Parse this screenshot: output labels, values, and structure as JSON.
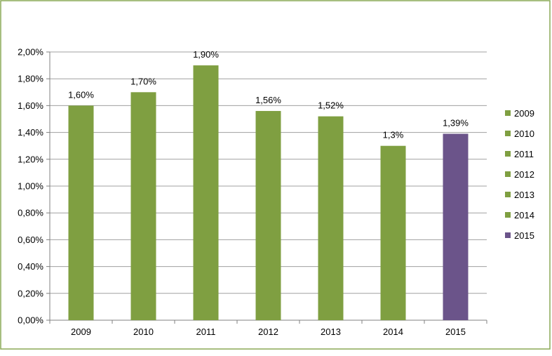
{
  "chart_data": {
    "type": "bar",
    "categories": [
      "2009",
      "2010",
      "2011",
      "2012",
      "2013",
      "2014",
      "2015"
    ],
    "values": [
      1.6,
      1.7,
      1.9,
      1.56,
      1.52,
      1.3,
      1.39
    ],
    "data_labels": [
      "1,60%",
      "1,70%",
      "1,90%",
      "1,56%",
      "1,52%",
      "1,3%",
      "1,39%"
    ],
    "colors": [
      "#7f9f41",
      "#7f9f41",
      "#7f9f41",
      "#7f9f41",
      "#7f9f41",
      "#7f9f41",
      "#6b548a"
    ],
    "ylim": [
      0,
      2.0
    ],
    "y_ticks": [
      {
        "value": 0.0,
        "label": "0,00%"
      },
      {
        "value": 0.2,
        "label": "0,20%"
      },
      {
        "value": 0.4,
        "label": "0,40%"
      },
      {
        "value": 0.6,
        "label": "0,60%"
      },
      {
        "value": 0.8,
        "label": "0,80%"
      },
      {
        "value": 1.0,
        "label": "1,00%"
      },
      {
        "value": 1.2,
        "label": "1,20%"
      },
      {
        "value": 1.4,
        "label": "1,40%"
      },
      {
        "value": 1.6,
        "label": "1,60%"
      },
      {
        "value": 1.8,
        "label": "1,80%"
      },
      {
        "value": 2.0,
        "label": "2,00%"
      }
    ],
    "grid": true,
    "legend": {
      "position": "right",
      "entries": [
        "2009",
        "2010",
        "2011",
        "2012",
        "2013",
        "2014",
        "2015"
      ]
    },
    "border_color": "#8aa856",
    "grid_color": "#a0a0a0"
  }
}
